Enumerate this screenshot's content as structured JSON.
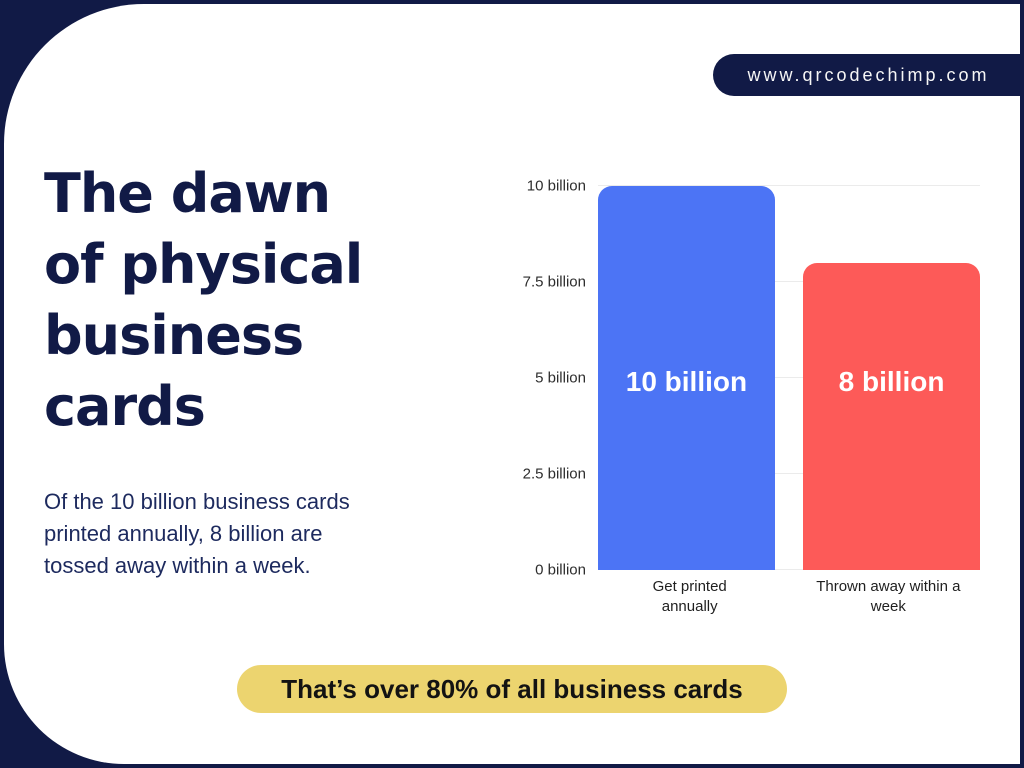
{
  "page": {
    "site_url": "www.qrcodechimp.com"
  },
  "colors": {
    "navy": "#111a46",
    "paper": "#ffffff",
    "blue": "#4c74f5",
    "red": "#fd5a58",
    "yellow": "#ecd46f",
    "grid": "#ebebeb"
  },
  "headline": {
    "title": "The dawn\nof physical\nbusiness\ncards",
    "description": "Of the 10 billion business cards\nprinted annually, 8 billion are\ntossed away within a week."
  },
  "callout": {
    "text": "That’s over 80% of all business cards"
  },
  "chart_data": {
    "type": "bar",
    "title": "",
    "xlabel": "",
    "ylabel": "",
    "categories": [
      "Get printed\nannually",
      "Thrown away within a\nweek"
    ],
    "values": [
      10,
      8
    ],
    "value_labels": [
      "10 billion",
      "8 billion"
    ],
    "bar_colors": [
      "#4c74f5",
      "#fd5a58"
    ],
    "value_label_color": "#ffffff",
    "ylim": [
      0,
      10
    ],
    "ytick_values": [
      0,
      2.5,
      5,
      7.5,
      10
    ],
    "ytick_labels": [
      "0 billion",
      "2.5 billion",
      "5 billion",
      "7.5 billion",
      "10 billion"
    ],
    "grid": true,
    "legend": false
  }
}
